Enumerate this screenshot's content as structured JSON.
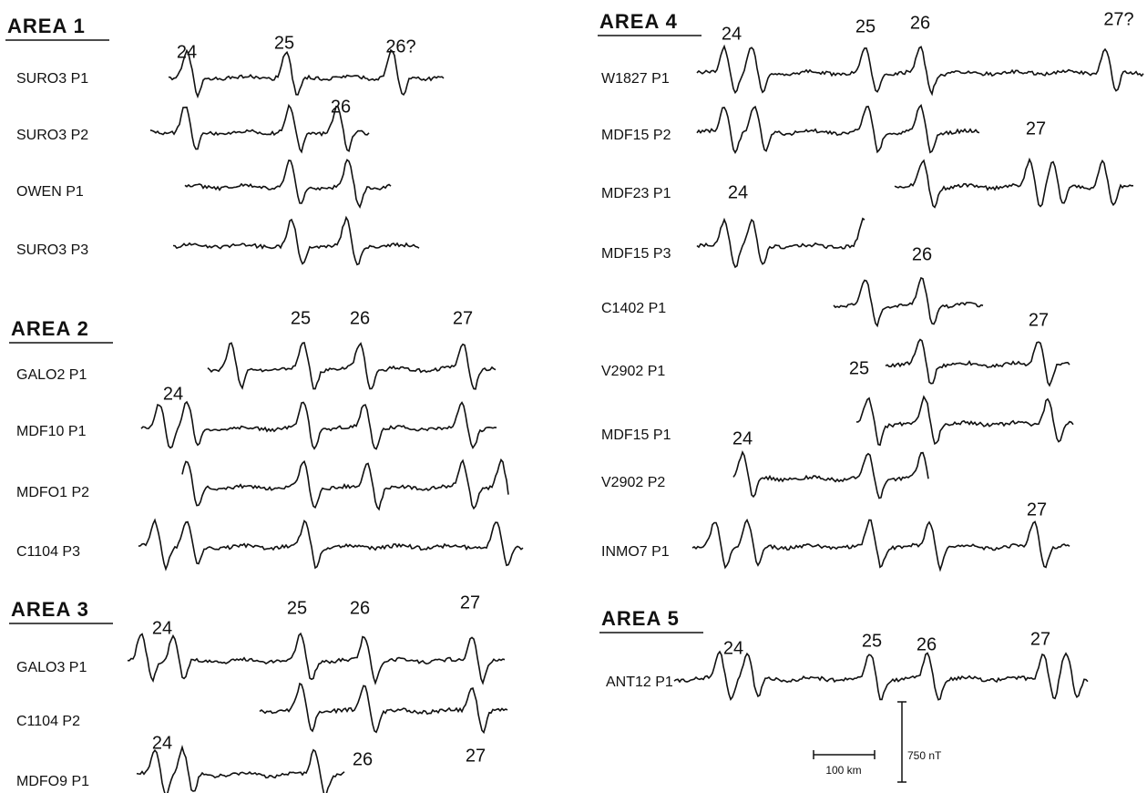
{
  "areas": [
    {
      "title": "AREA 1",
      "profiles": [
        "SURO3 P1",
        "SURO3 P2",
        "OWEN P1",
        "SURO3 P3"
      ],
      "anomalies": [
        "24",
        "25",
        "26?",
        "26"
      ]
    },
    {
      "title": "AREA 2",
      "profiles": [
        "GALO2 P1",
        "MDF10 P1",
        "MDFO1 P2",
        "C1104  P3"
      ],
      "anomalies": [
        "25",
        "26",
        "27",
        "24"
      ]
    },
    {
      "title": "AREA 3",
      "profiles": [
        "GALO3 P1",
        "C1104  P2",
        "MDFO9 P1"
      ],
      "anomalies": [
        "24",
        "25",
        "26",
        "27",
        "24",
        "26",
        "27"
      ]
    },
    {
      "title": "AREA 4",
      "profiles": [
        "W1827 P1",
        "MDF15 P2",
        "MDF23 P1",
        "MDF15 P3",
        "C1402  P1",
        "V2902 P1",
        "MDF15 P1",
        "V2902 P2",
        "INMO7 P1"
      ],
      "anomalies": [
        "24",
        "25",
        "26",
        "27?",
        "27",
        "24",
        "26",
        "27",
        "25",
        "24",
        "27"
      ]
    },
    {
      "title": "AREA 5",
      "profiles": [
        "ANT12 P1"
      ],
      "anomalies": [
        "24",
        "25",
        "26",
        "27"
      ]
    }
  ],
  "scale": {
    "distance": "100 km",
    "field": "750 nT"
  }
}
